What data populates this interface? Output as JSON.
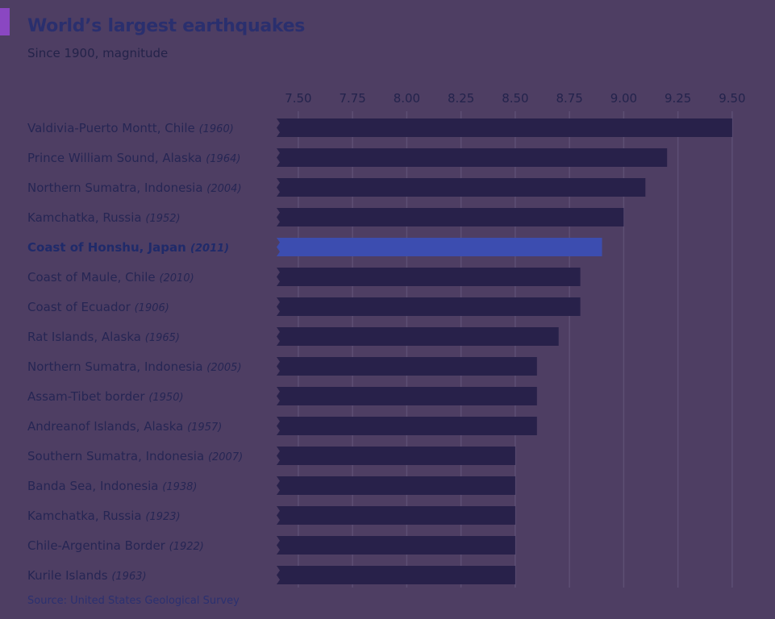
{
  "chart_data": {
    "type": "bar",
    "orientation": "horizontal",
    "title": "World’s largest earthquakes",
    "subtitle": "Since 1900, magnitude",
    "source": "Source: United States Geological Survey",
    "xlim": [
      7.4,
      9.5
    ],
    "xticks": [
      "7.50",
      "7.75",
      "8.00",
      "8.25",
      "8.50",
      "8.75",
      "9.00",
      "9.25",
      "9.50"
    ],
    "grid": true,
    "highlight_index": 4,
    "colors": {
      "bar": "#28214a",
      "highlight": "#3c4db0",
      "grid": "#5d4f74"
    },
    "categories": [
      {
        "place": "Valdivia-Puerto Montt, Chile",
        "year": "(1960)"
      },
      {
        "place": "Prince William Sound, Alaska",
        "year": "(1964)"
      },
      {
        "place": "Northern Sumatra, Indonesia",
        "year": "(2004)"
      },
      {
        "place": "Kamchatka, Russia",
        "year": "(1952)"
      },
      {
        "place": "Coast of Honshu, Japan",
        "year": "(2011)"
      },
      {
        "place": "Coast of Maule, Chile",
        "year": "(2010)"
      },
      {
        "place": "Coast of Ecuador",
        "year": "(1906)"
      },
      {
        "place": "Rat Islands, Alaska",
        "year": "(1965)"
      },
      {
        "place": "Northern Sumatra, Indonesia",
        "year": "(2005)"
      },
      {
        "place": "Assam-Tibet border",
        "year": "(1950)"
      },
      {
        "place": "Andreanof Islands, Alaska",
        "year": "(1957)"
      },
      {
        "place": "Southern Sumatra, Indonesia",
        "year": "(2007)"
      },
      {
        "place": "Banda Sea, Indonesia",
        "year": "(1938)"
      },
      {
        "place": "Kamchatka, Russia",
        "year": "(1923)"
      },
      {
        "place": "Chile-Argentina Border",
        "year": "(1922)"
      },
      {
        "place": "Kurile Islands",
        "year": "(1963)"
      }
    ],
    "values": [
      9.5,
      9.2,
      9.1,
      9.0,
      8.9,
      8.8,
      8.8,
      8.7,
      8.6,
      8.6,
      8.6,
      8.5,
      8.5,
      8.5,
      8.5,
      8.5
    ]
  }
}
